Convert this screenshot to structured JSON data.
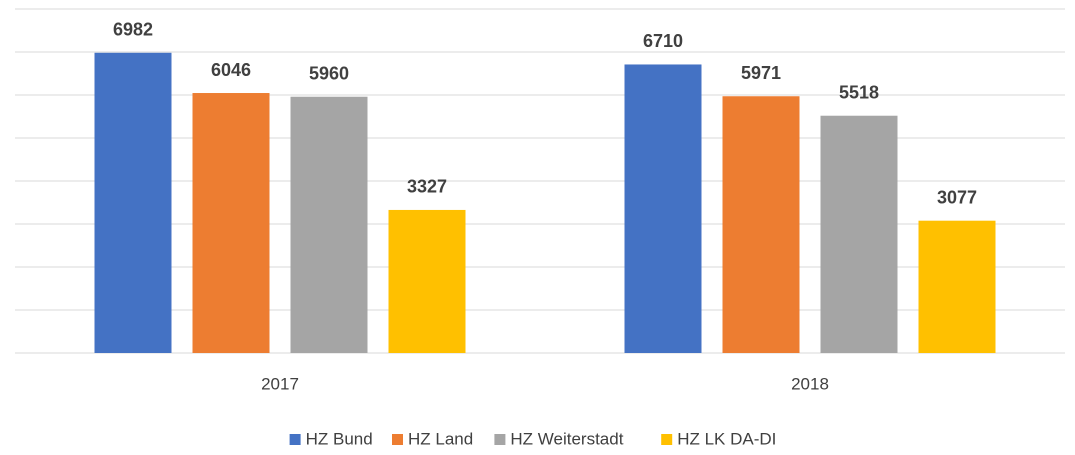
{
  "chart_data": {
    "type": "bar",
    "categories": [
      "2017",
      "2018"
    ],
    "series": [
      {
        "name": "HZ Bund",
        "color": "#4472c4",
        "values": [
          6982,
          6710
        ]
      },
      {
        "name": "HZ Land",
        "color": "#ed7d31",
        "values": [
          6046,
          5971
        ]
      },
      {
        "name": "HZ Weiterstadt",
        "color": "#a5a5a5",
        "values": [
          5960,
          5518
        ]
      },
      {
        "name": "HZ LK DA-DI",
        "color": "#ffc000",
        "values": [
          3327,
          3077
        ]
      }
    ],
    "ylim": [
      0,
      8000
    ],
    "yticks": [
      0,
      1000,
      2000,
      3000,
      4000,
      5000,
      6000,
      7000,
      8000
    ],
    "grid": true,
    "legend": "bottom"
  }
}
